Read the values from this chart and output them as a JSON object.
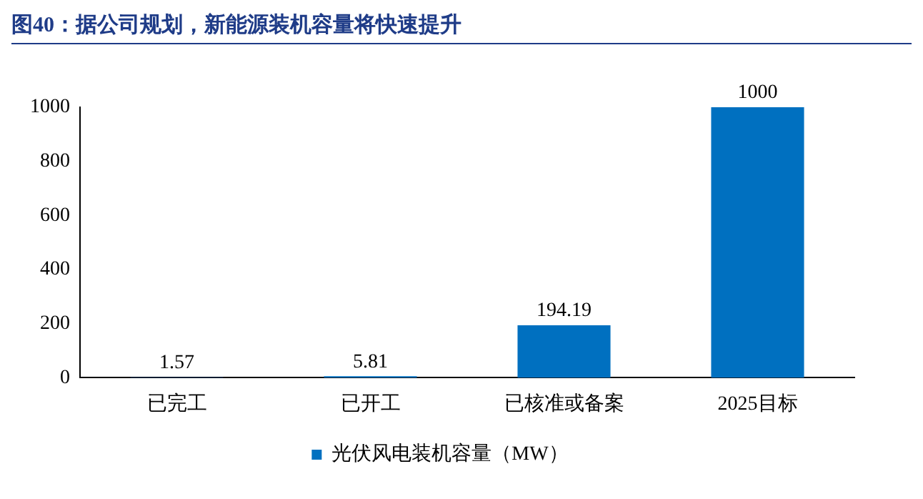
{
  "chart_data": {
    "type": "bar",
    "title": "图40：据公司规划，新能源装机容量将快速提升",
    "categories": [
      "已完工",
      "已开工",
      "已核准或备案",
      "2025目标"
    ],
    "series": [
      {
        "name": "光伏风电装机容量（MW）",
        "color": "#0070c0",
        "values": [
          1.57,
          5.81,
          194.19,
          1000
        ]
      }
    ],
    "ylim": [
      0,
      1000
    ],
    "yticks": [
      0,
      200,
      400,
      600,
      800,
      1000
    ],
    "grid": false,
    "legend": "bottom",
    "data_labels": true
  }
}
